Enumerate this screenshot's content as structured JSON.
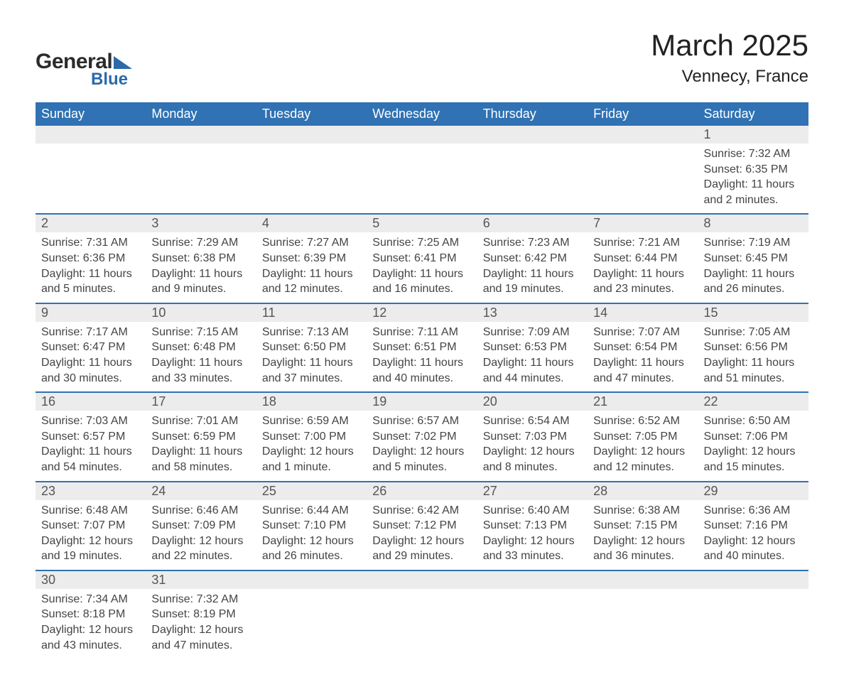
{
  "logo": {
    "text1": "General",
    "text2": "Blue",
    "shape_color": "#2b69ab"
  },
  "title": "March 2025",
  "location": "Vennecy, France",
  "colors": {
    "header_bg": "#3072b3",
    "header_text": "#ffffff",
    "daynum_bg": "#ececec",
    "row_border": "#3072b3",
    "body_text": "#444444",
    "page_bg": "#ffffff"
  },
  "fonts": {
    "title_pt": 42,
    "location_pt": 24,
    "header_pt": 18,
    "daynum_pt": 18,
    "body_pt": 16
  },
  "day_headers": [
    "Sunday",
    "Monday",
    "Tuesday",
    "Wednesday",
    "Thursday",
    "Friday",
    "Saturday"
  ],
  "weeks": [
    [
      null,
      null,
      null,
      null,
      null,
      null,
      {
        "n": "1",
        "sunrise": "7:32 AM",
        "sunset": "6:35 PM",
        "daylight": "11 hours and 2 minutes."
      }
    ],
    [
      {
        "n": "2",
        "sunrise": "7:31 AM",
        "sunset": "6:36 PM",
        "daylight": "11 hours and 5 minutes."
      },
      {
        "n": "3",
        "sunrise": "7:29 AM",
        "sunset": "6:38 PM",
        "daylight": "11 hours and 9 minutes."
      },
      {
        "n": "4",
        "sunrise": "7:27 AM",
        "sunset": "6:39 PM",
        "daylight": "11 hours and 12 minutes."
      },
      {
        "n": "5",
        "sunrise": "7:25 AM",
        "sunset": "6:41 PM",
        "daylight": "11 hours and 16 minutes."
      },
      {
        "n": "6",
        "sunrise": "7:23 AM",
        "sunset": "6:42 PM",
        "daylight": "11 hours and 19 minutes."
      },
      {
        "n": "7",
        "sunrise": "7:21 AM",
        "sunset": "6:44 PM",
        "daylight": "11 hours and 23 minutes."
      },
      {
        "n": "8",
        "sunrise": "7:19 AM",
        "sunset": "6:45 PM",
        "daylight": "11 hours and 26 minutes."
      }
    ],
    [
      {
        "n": "9",
        "sunrise": "7:17 AM",
        "sunset": "6:47 PM",
        "daylight": "11 hours and 30 minutes."
      },
      {
        "n": "10",
        "sunrise": "7:15 AM",
        "sunset": "6:48 PM",
        "daylight": "11 hours and 33 minutes."
      },
      {
        "n": "11",
        "sunrise": "7:13 AM",
        "sunset": "6:50 PM",
        "daylight": "11 hours and 37 minutes."
      },
      {
        "n": "12",
        "sunrise": "7:11 AM",
        "sunset": "6:51 PM",
        "daylight": "11 hours and 40 minutes."
      },
      {
        "n": "13",
        "sunrise": "7:09 AM",
        "sunset": "6:53 PM",
        "daylight": "11 hours and 44 minutes."
      },
      {
        "n": "14",
        "sunrise": "7:07 AM",
        "sunset": "6:54 PM",
        "daylight": "11 hours and 47 minutes."
      },
      {
        "n": "15",
        "sunrise": "7:05 AM",
        "sunset": "6:56 PM",
        "daylight": "11 hours and 51 minutes."
      }
    ],
    [
      {
        "n": "16",
        "sunrise": "7:03 AM",
        "sunset": "6:57 PM",
        "daylight": "11 hours and 54 minutes."
      },
      {
        "n": "17",
        "sunrise": "7:01 AM",
        "sunset": "6:59 PM",
        "daylight": "11 hours and 58 minutes."
      },
      {
        "n": "18",
        "sunrise": "6:59 AM",
        "sunset": "7:00 PM",
        "daylight": "12 hours and 1 minute."
      },
      {
        "n": "19",
        "sunrise": "6:57 AM",
        "sunset": "7:02 PM",
        "daylight": "12 hours and 5 minutes."
      },
      {
        "n": "20",
        "sunrise": "6:54 AM",
        "sunset": "7:03 PM",
        "daylight": "12 hours and 8 minutes."
      },
      {
        "n": "21",
        "sunrise": "6:52 AM",
        "sunset": "7:05 PM",
        "daylight": "12 hours and 12 minutes."
      },
      {
        "n": "22",
        "sunrise": "6:50 AM",
        "sunset": "7:06 PM",
        "daylight": "12 hours and 15 minutes."
      }
    ],
    [
      {
        "n": "23",
        "sunrise": "6:48 AM",
        "sunset": "7:07 PM",
        "daylight": "12 hours and 19 minutes."
      },
      {
        "n": "24",
        "sunrise": "6:46 AM",
        "sunset": "7:09 PM",
        "daylight": "12 hours and 22 minutes."
      },
      {
        "n": "25",
        "sunrise": "6:44 AM",
        "sunset": "7:10 PM",
        "daylight": "12 hours and 26 minutes."
      },
      {
        "n": "26",
        "sunrise": "6:42 AM",
        "sunset": "7:12 PM",
        "daylight": "12 hours and 29 minutes."
      },
      {
        "n": "27",
        "sunrise": "6:40 AM",
        "sunset": "7:13 PM",
        "daylight": "12 hours and 33 minutes."
      },
      {
        "n": "28",
        "sunrise": "6:38 AM",
        "sunset": "7:15 PM",
        "daylight": "12 hours and 36 minutes."
      },
      {
        "n": "29",
        "sunrise": "6:36 AM",
        "sunset": "7:16 PM",
        "daylight": "12 hours and 40 minutes."
      }
    ],
    [
      {
        "n": "30",
        "sunrise": "7:34 AM",
        "sunset": "8:18 PM",
        "daylight": "12 hours and 43 minutes."
      },
      {
        "n": "31",
        "sunrise": "7:32 AM",
        "sunset": "8:19 PM",
        "daylight": "12 hours and 47 minutes."
      },
      null,
      null,
      null,
      null,
      null
    ]
  ],
  "labels": {
    "sunrise": "Sunrise: ",
    "sunset": "Sunset: ",
    "daylight": "Daylight: "
  }
}
